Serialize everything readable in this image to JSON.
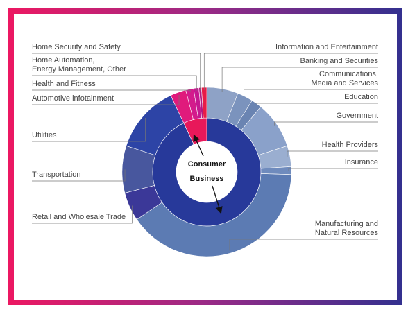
{
  "chart_data": {
    "type": "sunburst",
    "inner": {
      "labels": [
        "Business",
        "Consumer"
      ],
      "values": [
        93,
        7
      ],
      "colors": [
        "#27399a",
        "#e8185a"
      ]
    },
    "outer": {
      "labels": [
        "Banking and Securities",
        "Communications,\nMedia and Services",
        "Education",
        "Government",
        "Health Providers",
        "Insurance",
        "Manufacturing and\nNatural Resources",
        "Retail and Wholesale Trade",
        "Transportation",
        "Utilities",
        "Automotive infotainment",
        "Health and Fitness",
        "Home Automation,\nEnergy Management, Other",
        "Home Security and Safety",
        "Information and Entertainment"
      ],
      "values": [
        6,
        3,
        2,
        9,
        4,
        1.5,
        40,
        5.5,
        9,
        13,
        3,
        1.5,
        1,
        0.5,
        1
      ],
      "colors": [
        "#8ea2c6",
        "#7b93bd",
        "#6a84b2",
        "#8aa1ca",
        "#9aaed0",
        "#6f8bbd",
        "#5c7bb3",
        "#3b3898",
        "#48579e",
        "#2d44a6",
        "#e01a7c",
        "#d31b8c",
        "#c51890",
        "#b3167f",
        "#e81a47"
      ]
    }
  }
}
